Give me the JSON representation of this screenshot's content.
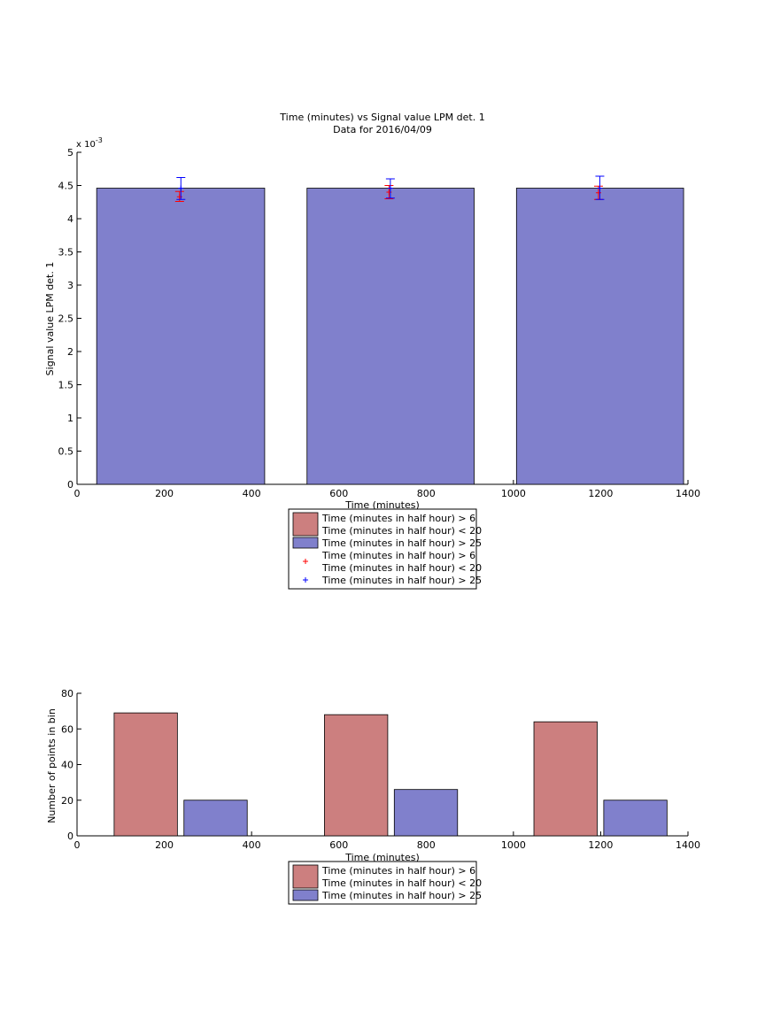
{
  "chart_data": [
    {
      "type": "bar",
      "title": "Time (minutes) vs Signal value LPM det. 1",
      "subtitle": "Data for 2016/04/09",
      "xlabel": "Time (minutes)",
      "ylabel": "Signal value LPM det. 1",
      "exponent_label": "x 10",
      "exponent_power": "-3",
      "xlim": [
        0,
        1400
      ],
      "ylim": [
        0,
        5
      ],
      "x_ticks": [
        "0",
        "200",
        "400",
        "600",
        "800",
        "1000",
        "1200",
        "1400"
      ],
      "y_ticks": [
        "0",
        "0.5",
        "1",
        "1.5",
        "2",
        "2.5",
        "3",
        "3.5",
        "4",
        "4.5",
        "5"
      ],
      "series": [
        {
          "name": "Time (minutes in half hour) > 25",
          "color": "#8080cc",
          "bars": [
            {
              "x_start": 45,
              "x_end": 430,
              "value": 4.46
            },
            {
              "x_start": 527,
              "x_end": 910,
              "value": 4.46
            },
            {
              "x_start": 1007,
              "x_end": 1390,
              "value": 4.46
            }
          ]
        }
      ],
      "error_points": [
        {
          "series": "Time (minutes in half hour) > 6 Time (minutes in half hour) < 20",
          "color": "#ff0000",
          "points": [
            {
              "x": 235,
              "y": 4.33,
              "low": 4.26,
              "high": 4.41
            },
            {
              "x": 715,
              "y": 4.4,
              "low": 4.3,
              "high": 4.5
            },
            {
              "x": 1195,
              "y": 4.39,
              "low": 4.29,
              "high": 4.49
            }
          ]
        },
        {
          "series": "Time (minutes in half hour) > 25",
          "color": "#0000ff",
          "points": [
            {
              "x": 238,
              "y": 4.46,
              "low": 4.29,
              "high": 4.62
            },
            {
              "x": 718,
              "y": 4.46,
              "low": 4.31,
              "high": 4.6
            },
            {
              "x": 1198,
              "y": 4.46,
              "low": 4.29,
              "high": 4.64
            }
          ]
        }
      ],
      "legend": [
        {
          "kind": "patch",
          "color": "#cc7f7f",
          "lines": [
            "Time (minutes in half hour) > 6",
            "Time (minutes in half hour) < 20"
          ]
        },
        {
          "kind": "patch",
          "color": "#8080cc",
          "lines": [
            "Time (minutes in half hour) > 25"
          ]
        },
        {
          "kind": "marker",
          "color": "#ff0000",
          "lines": [
            "Time (minutes in half hour) > 6",
            "Time (minutes in half hour) < 20"
          ]
        },
        {
          "kind": "marker",
          "color": "#0000ff",
          "lines": [
            "Time (minutes in half hour) > 25"
          ]
        }
      ],
      "grid": false
    },
    {
      "type": "bar",
      "xlabel": "Time (minutes)",
      "ylabel": "Number of points in bin",
      "xlim": [
        0,
        1400
      ],
      "ylim": [
        0,
        80
      ],
      "x_ticks": [
        "0",
        "200",
        "400",
        "600",
        "800",
        "1000",
        "1200",
        "1400"
      ],
      "y_ticks": [
        "0",
        "20",
        "40",
        "60",
        "80"
      ],
      "series": [
        {
          "name": "Time (minutes in half hour) > 6 Time (minutes in half hour) < 20",
          "color": "#cc7f7f",
          "bars": [
            {
              "x_start": 85,
              "x_end": 230,
              "value": 69
            },
            {
              "x_start": 567,
              "x_end": 712,
              "value": 68
            },
            {
              "x_start": 1047,
              "x_end": 1192,
              "value": 64
            }
          ]
        },
        {
          "name": "Time (minutes in half hour) > 25",
          "color": "#8080cc",
          "bars": [
            {
              "x_start": 245,
              "x_end": 390,
              "value": 20
            },
            {
              "x_start": 727,
              "x_end": 872,
              "value": 26
            },
            {
              "x_start": 1207,
              "x_end": 1352,
              "value": 20
            }
          ]
        }
      ],
      "legend": [
        {
          "kind": "patch",
          "color": "#cc7f7f",
          "lines": [
            "Time (minutes in half hour) > 6",
            "Time (minutes in half hour) < 20"
          ]
        },
        {
          "kind": "patch",
          "color": "#8080cc",
          "lines": [
            "Time (minutes in half hour) > 25"
          ]
        }
      ],
      "grid": false
    }
  ]
}
